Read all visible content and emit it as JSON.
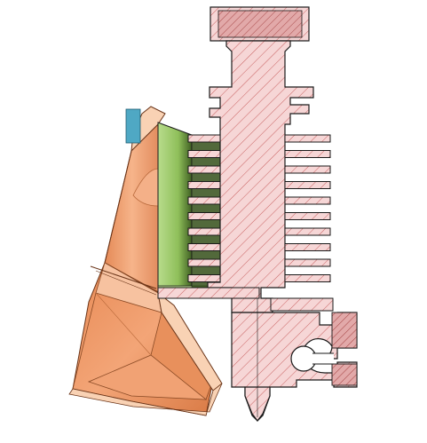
{
  "scene": {
    "description_visible_text": "",
    "colors": {
      "section_fill": "#f6d6d6",
      "section_hatch": "#c04848",
      "section_outline": "#1a1a1a",
      "thread_fill": "#d9a3a3",
      "heatsink_green": "#9acb6a",
      "heatsink_green_dark": "#3d5a1c",
      "shroud_orange": "#f0a070",
      "shroud_orange_light": "#f7c8a8",
      "shroud_orange_dark": "#c06a3a",
      "fan_blue": "#4fa8c4",
      "background": "#ffffff"
    }
  }
}
